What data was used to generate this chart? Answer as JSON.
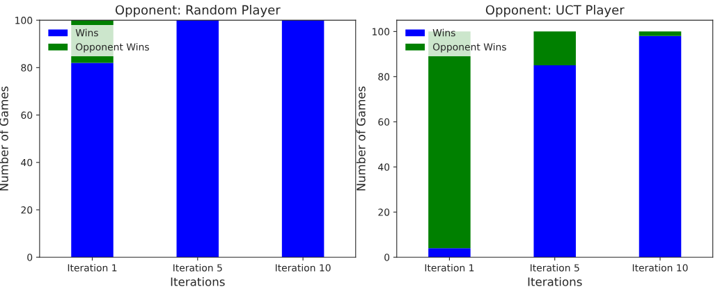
{
  "chart_data": [
    {
      "type": "bar",
      "title": "Opponent: Random Player",
      "xlabel": "Iterations",
      "ylabel": "Number of Games",
      "categories": [
        "Iteration 1",
        "Iteration 5",
        "Iteration 10"
      ],
      "stacked": true,
      "series": [
        {
          "name": "Wins",
          "color": "#0000ff",
          "values": [
            82,
            100,
            100
          ]
        },
        {
          "name": "Opponent Wins",
          "color": "#008000",
          "values": [
            18,
            0,
            0
          ]
        }
      ],
      "ylim": [
        0,
        100
      ],
      "yticks": [
        0,
        20,
        40,
        60,
        80,
        100
      ],
      "legend": "top left"
    },
    {
      "type": "bar",
      "title": "Opponent: UCT Player",
      "xlabel": "Iterations",
      "ylabel": "Number of Games",
      "categories": [
        "Iteration 1",
        "Iteration 5",
        "Iteration 10"
      ],
      "stacked": true,
      "series": [
        {
          "name": "Wins",
          "color": "#0000ff",
          "values": [
            4,
            85,
            98
          ]
        },
        {
          "name": "Opponent Wins",
          "color": "#008000",
          "values": [
            96,
            15,
            2
          ]
        }
      ],
      "ylim": [
        0,
        105
      ],
      "yticks": [
        0,
        20,
        40,
        60,
        80,
        100
      ],
      "legend": "top left"
    }
  ]
}
